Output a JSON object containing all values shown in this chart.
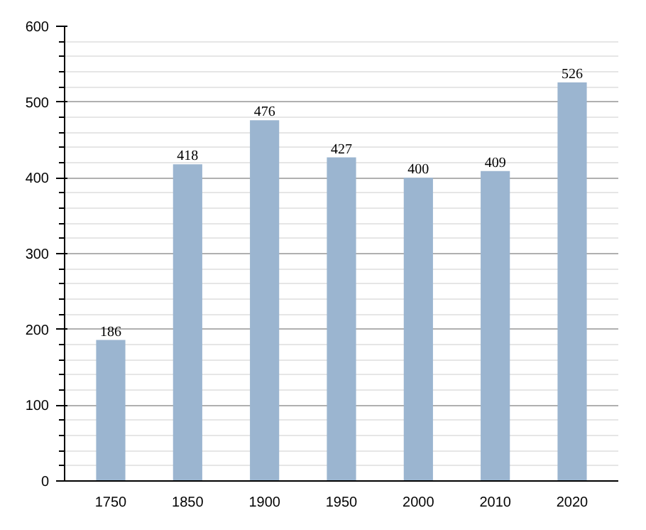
{
  "chart_data": {
    "type": "bar",
    "categories": [
      "1750",
      "1850",
      "1900",
      "1950",
      "2000",
      "2010",
      "2020"
    ],
    "values": [
      186,
      418,
      476,
      427,
      400,
      409,
      526
    ],
    "color": "#9bb5d0",
    "ylim": [
      0,
      600
    ],
    "yticks": [
      0,
      100,
      200,
      300,
      400,
      500,
      600
    ],
    "grid": "y",
    "data_labels": true
  }
}
